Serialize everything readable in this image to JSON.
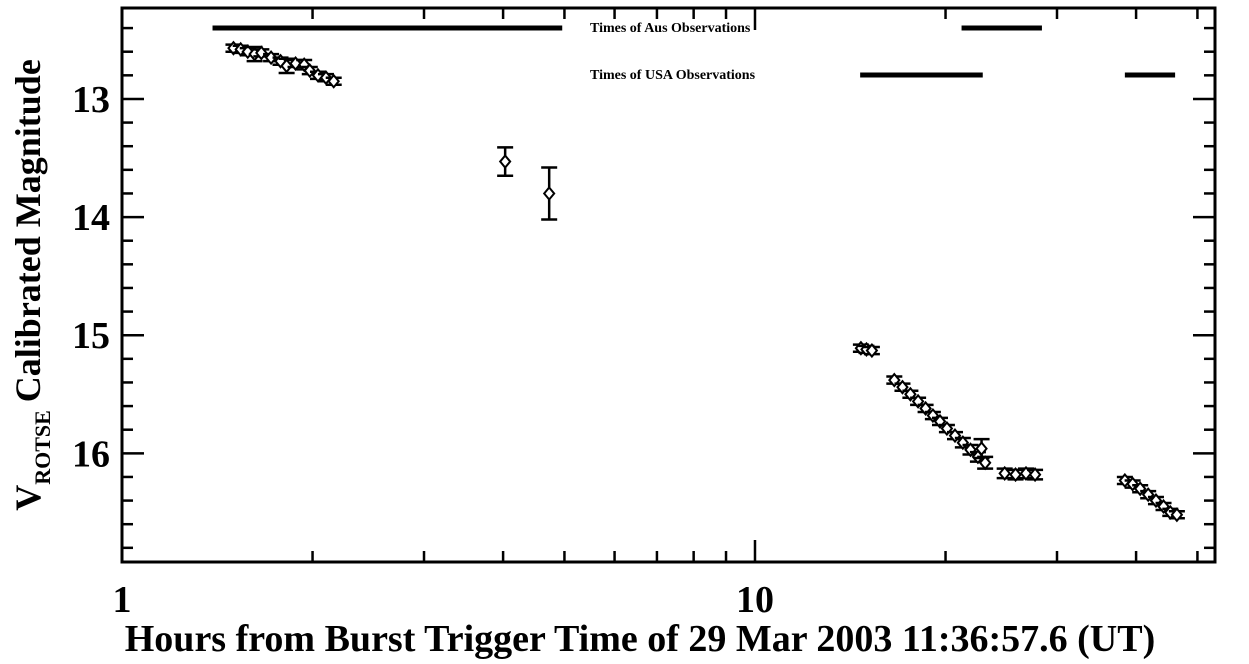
{
  "chart_data": {
    "type": "scatter",
    "xlabel": "Hours from Burst Trigger Time of 29 Mar 2003 11:36:57.6 (UT)",
    "ylabel": {
      "main": "V",
      "sub": "ROTSE",
      "rest": "Calibrated Magnitude"
    },
    "xscale": "log",
    "xlim": [
      1,
      53.3
    ],
    "ylim": [
      12.23,
      16.92
    ],
    "y_inverted": true,
    "xticks": [
      1,
      10
    ],
    "xminor": [
      2,
      3,
      4,
      5,
      6,
      7,
      8,
      9,
      20,
      30,
      40,
      50
    ],
    "yticks": [
      13,
      14,
      15,
      16
    ],
    "yminor": [
      12.4,
      12.6,
      12.8,
      13.2,
      13.4,
      13.6,
      13.8,
      14.2,
      14.4,
      14.6,
      14.8,
      15.2,
      15.4,
      15.6,
      15.8,
      16.2,
      16.4,
      16.6,
      16.8
    ],
    "color": "#000000",
    "x": [
      1.5,
      1.54,
      1.58,
      1.62,
      1.66,
      1.72,
      1.78,
      1.82,
      1.88,
      1.94,
      1.98,
      2.04,
      2.1,
      2.16,
      4.03,
      4.73,
      14.7,
      15.0,
      15.3,
      16.6,
      17.1,
      17.6,
      18.1,
      18.6,
      19.1,
      19.6,
      20.1,
      20.7,
      21.3,
      21.9,
      22.5,
      22.8,
      23.1,
      24.8,
      25.8,
      26.8,
      27.7,
      38.4,
      39.5,
      40.6,
      41.8,
      43.0,
      44.2,
      45.3,
      46.4
    ],
    "values": [
      12.57,
      12.58,
      12.6,
      12.62,
      12.61,
      12.65,
      12.68,
      12.72,
      12.7,
      12.71,
      12.76,
      12.8,
      12.82,
      12.85,
      13.53,
      13.8,
      15.11,
      15.12,
      15.13,
      15.38,
      15.44,
      15.5,
      15.56,
      15.62,
      15.68,
      15.73,
      15.79,
      15.85,
      15.91,
      15.97,
      16.03,
      15.96,
      16.08,
      16.17,
      16.18,
      16.17,
      16.18,
      16.23,
      16.26,
      16.3,
      16.35,
      16.4,
      16.45,
      16.5,
      16.52
    ],
    "errors": [
      0.03,
      0.03,
      0.03,
      0.06,
      0.03,
      0.03,
      0.03,
      0.06,
      0.03,
      0.04,
      0.03,
      0.03,
      0.03,
      0.03,
      0.12,
      0.22,
      0.03,
      0.03,
      0.03,
      0.03,
      0.03,
      0.03,
      0.03,
      0.03,
      0.03,
      0.03,
      0.03,
      0.03,
      0.04,
      0.04,
      0.04,
      0.08,
      0.05,
      0.04,
      0.04,
      0.04,
      0.04,
      0.03,
      0.03,
      0.03,
      0.03,
      0.03,
      0.03,
      0.03,
      0.03
    ],
    "annotations": [
      {
        "text": "Times of Aus Observations",
        "intervals": [
          [
            1.39,
            4.96
          ],
          [
            21.2,
            28.4
          ]
        ]
      },
      {
        "text": "Times of USA Observations",
        "intervals": [
          [
            14.66,
            22.9
          ],
          [
            38.4,
            46.1
          ]
        ]
      }
    ]
  }
}
